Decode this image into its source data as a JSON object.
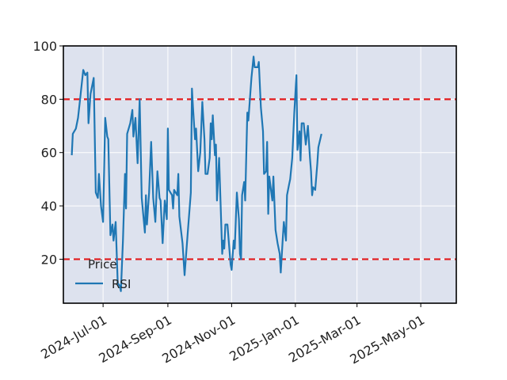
{
  "chart_data": {
    "type": "line",
    "title": "",
    "xlabel": "",
    "ylabel": "",
    "ylim": [
      3.5,
      100
    ],
    "xlim": [
      "2024-05-24",
      "2025-06-04"
    ],
    "grid": true,
    "background_color": "#dde2ee",
    "x_tick_labels": [
      "2024-Jul-01",
      "2024-Sep-01",
      "2024-Nov-01",
      "2025-Jan-01",
      "2025-Mar-01",
      "2025-May-01"
    ],
    "x_tick_dates": [
      "2024-07-01",
      "2024-09-01",
      "2024-11-01",
      "2025-01-01",
      "2025-03-01",
      "2025-05-01"
    ],
    "y_ticks": [
      20,
      40,
      60,
      80,
      100
    ],
    "legend": {
      "title": "Price",
      "placement": "lower-left",
      "entries": [
        "RSI"
      ]
    },
    "reference_lines": [
      {
        "y": 80,
        "color": "#e31a1c",
        "style": "dashed"
      },
      {
        "y": 20,
        "color": "#e31a1c",
        "style": "dashed"
      }
    ],
    "series": [
      {
        "name": "RSI",
        "color": "#1f77b4",
        "points": [
          [
            "2024-06-01",
            59
          ],
          [
            "2024-06-02",
            67
          ],
          [
            "2024-06-05",
            69
          ],
          [
            "2024-06-07",
            73
          ],
          [
            "2024-06-09",
            80
          ],
          [
            "2024-06-12",
            91
          ],
          [
            "2024-06-14",
            89
          ],
          [
            "2024-06-16",
            90
          ],
          [
            "2024-06-17",
            71
          ],
          [
            "2024-06-19",
            82
          ],
          [
            "2024-06-22",
            88
          ],
          [
            "2024-06-24",
            45
          ],
          [
            "2024-06-26",
            43
          ],
          [
            "2024-06-27",
            52
          ],
          [
            "2024-06-29",
            40
          ],
          [
            "2024-07-01",
            34
          ],
          [
            "2024-07-03",
            73
          ],
          [
            "2024-07-05",
            66
          ],
          [
            "2024-07-06",
            65
          ],
          [
            "2024-07-08",
            29
          ],
          [
            "2024-07-10",
            33
          ],
          [
            "2024-07-11",
            27
          ],
          [
            "2024-07-13",
            34
          ],
          [
            "2024-07-15",
            11
          ],
          [
            "2024-07-17",
            10
          ],
          [
            "2024-07-18",
            8
          ],
          [
            "2024-07-20",
            27
          ],
          [
            "2024-07-22",
            52
          ],
          [
            "2024-07-23",
            39
          ],
          [
            "2024-07-24",
            67
          ],
          [
            "2024-07-27",
            71
          ],
          [
            "2024-07-29",
            76
          ],
          [
            "2024-07-30",
            66
          ],
          [
            "2024-08-01",
            73
          ],
          [
            "2024-08-03",
            56
          ],
          [
            "2024-08-05",
            80
          ],
          [
            "2024-08-07",
            43
          ],
          [
            "2024-08-10",
            30
          ],
          [
            "2024-08-11",
            44
          ],
          [
            "2024-08-12",
            33
          ],
          [
            "2024-08-14",
            45
          ],
          [
            "2024-08-16",
            64
          ],
          [
            "2024-08-18",
            43
          ],
          [
            "2024-08-20",
            34
          ],
          [
            "2024-08-22",
            53
          ],
          [
            "2024-08-24",
            43
          ],
          [
            "2024-08-25",
            42
          ],
          [
            "2024-08-27",
            26
          ],
          [
            "2024-08-29",
            42
          ],
          [
            "2024-08-31",
            35
          ],
          [
            "2024-09-01",
            69
          ],
          [
            "2024-09-02",
            46
          ],
          [
            "2024-09-05",
            44
          ],
          [
            "2024-09-06",
            39
          ],
          [
            "2024-09-07",
            46
          ],
          [
            "2024-09-10",
            44
          ],
          [
            "2024-09-11",
            52
          ],
          [
            "2024-09-12",
            36
          ],
          [
            "2024-09-15",
            26
          ],
          [
            "2024-09-17",
            14
          ],
          [
            "2024-09-20",
            30
          ],
          [
            "2024-09-23",
            45
          ],
          [
            "2024-09-24",
            84
          ],
          [
            "2024-09-25",
            77
          ],
          [
            "2024-09-27",
            65
          ],
          [
            "2024-09-28",
            69
          ],
          [
            "2024-09-30",
            53
          ],
          [
            "2024-10-02",
            60
          ],
          [
            "2024-10-04",
            79
          ],
          [
            "2024-10-06",
            65
          ],
          [
            "2024-10-07",
            52
          ],
          [
            "2024-10-09",
            52
          ],
          [
            "2024-10-11",
            58
          ],
          [
            "2024-10-12",
            71
          ],
          [
            "2024-10-13",
            65
          ],
          [
            "2024-10-14",
            74
          ],
          [
            "2024-10-16",
            59
          ],
          [
            "2024-10-17",
            63
          ],
          [
            "2024-10-18",
            42
          ],
          [
            "2024-10-20",
            58
          ],
          [
            "2024-10-23",
            22
          ],
          [
            "2024-10-24",
            27
          ],
          [
            "2024-10-25",
            24
          ],
          [
            "2024-10-26",
            33
          ],
          [
            "2024-10-28",
            33
          ],
          [
            "2024-10-31",
            18
          ],
          [
            "2024-11-01",
            16
          ],
          [
            "2024-11-03",
            27
          ],
          [
            "2024-11-04",
            24
          ],
          [
            "2024-11-06",
            45
          ],
          [
            "2024-11-08",
            35
          ],
          [
            "2024-11-09",
            22
          ],
          [
            "2024-11-10",
            20
          ],
          [
            "2024-11-11",
            44
          ],
          [
            "2024-11-13",
            49
          ],
          [
            "2024-11-14",
            42
          ],
          [
            "2024-11-16",
            75
          ],
          [
            "2024-11-17",
            72
          ],
          [
            "2024-11-20",
            88
          ],
          [
            "2024-11-22",
            96
          ],
          [
            "2024-11-23",
            92
          ],
          [
            "2024-11-25",
            92
          ],
          [
            "2024-11-26",
            92
          ],
          [
            "2024-11-27",
            94
          ],
          [
            "2024-11-29",
            77
          ],
          [
            "2024-12-01",
            68
          ],
          [
            "2024-12-02",
            52
          ],
          [
            "2024-12-04",
            53
          ],
          [
            "2024-12-05",
            64
          ],
          [
            "2024-12-06",
            37
          ],
          [
            "2024-12-07",
            51
          ],
          [
            "2024-12-10",
            42
          ],
          [
            "2024-12-11",
            51
          ],
          [
            "2024-12-13",
            31
          ],
          [
            "2024-12-15",
            26
          ],
          [
            "2024-12-17",
            22
          ],
          [
            "2024-12-18",
            15
          ],
          [
            "2024-12-20",
            28
          ],
          [
            "2024-12-21",
            34
          ],
          [
            "2024-12-23",
            27
          ],
          [
            "2024-12-24",
            44
          ],
          [
            "2024-12-26",
            48
          ],
          [
            "2024-12-27",
            50
          ],
          [
            "2024-12-29",
            58
          ],
          [
            "2024-12-31",
            75
          ],
          [
            "2025-01-02",
            89
          ],
          [
            "2025-01-03",
            61
          ],
          [
            "2025-01-05",
            68
          ],
          [
            "2025-01-06",
            57
          ],
          [
            "2025-01-07",
            71
          ],
          [
            "2025-01-09",
            71
          ],
          [
            "2025-01-11",
            63
          ],
          [
            "2025-01-13",
            70
          ],
          [
            "2025-01-15",
            58
          ],
          [
            "2025-01-16",
            53
          ],
          [
            "2025-01-17",
            44
          ],
          [
            "2025-01-18",
            47
          ],
          [
            "2025-01-20",
            46
          ],
          [
            "2025-01-22",
            56
          ],
          [
            "2025-01-23",
            62
          ],
          [
            "2025-01-26",
            67
          ]
        ]
      }
    ]
  }
}
